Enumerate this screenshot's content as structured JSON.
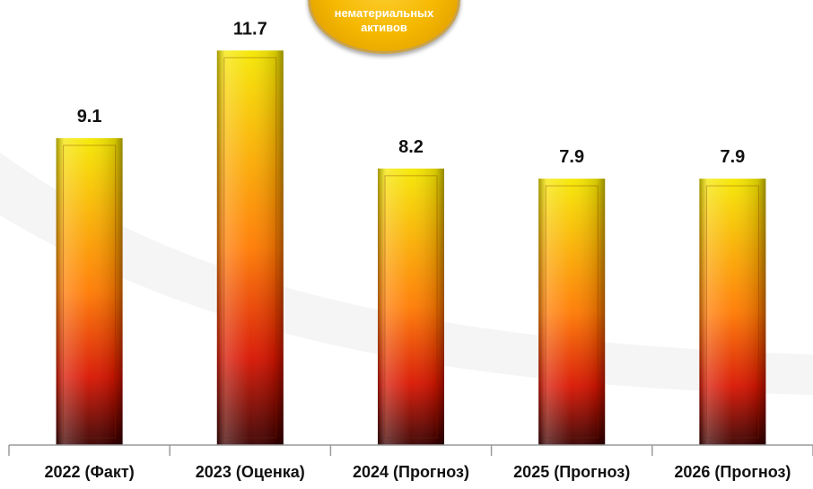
{
  "badge": {
    "line1": "нематериальных",
    "line2": "активов"
  },
  "chart_data": {
    "type": "bar",
    "categories": [
      "2022 (Факт)",
      "2023 (Оценка)",
      "2024 (Прогноз)",
      "2025 (Прогноз)",
      "2026 (Прогноз)"
    ],
    "values": [
      9.1,
      11.7,
      8.2,
      7.9,
      7.9
    ],
    "value_labels": [
      "9.1",
      "11.7",
      "8.2",
      "7.9",
      "7.9"
    ],
    "ylim": [
      0,
      12.4
    ],
    "grid": false,
    "legend": "none",
    "colors": {
      "bar_top": "#f5e800",
      "bar_mid": "#ff7a00",
      "bar_bottom": "#3a0000"
    }
  }
}
